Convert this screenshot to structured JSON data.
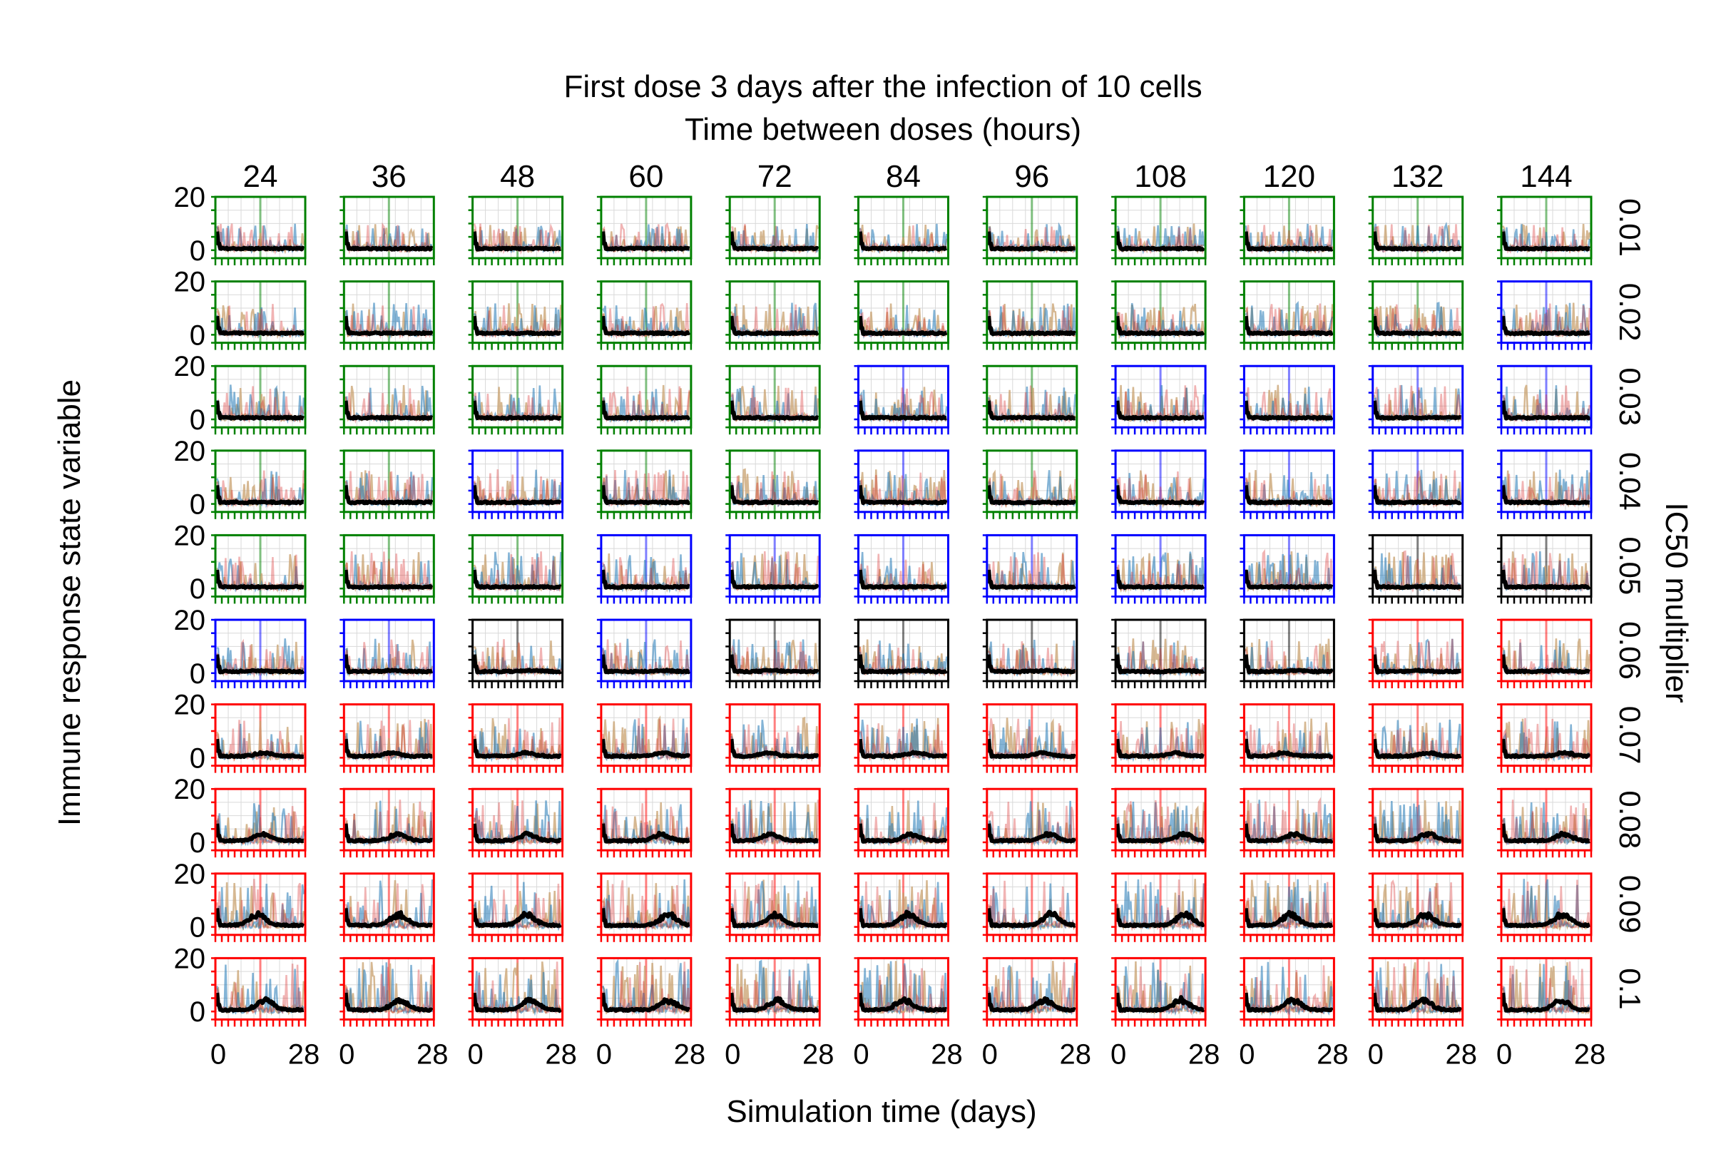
{
  "chart_data": {
    "type": "line",
    "title_line1": "First dose 3 days after the infection of 10 cells",
    "title_line2": "Time between doses (hours)",
    "xlabel": "Simulation time (days)",
    "ylabel": "Immune response state variable",
    "right_label": "IC50 multiplier",
    "columns": [
      "24",
      "36",
      "48",
      "60",
      "72",
      "84",
      "96",
      "108",
      "120",
      "132",
      "144"
    ],
    "rows": [
      "0.01",
      "0.02",
      "0.03",
      "0.04",
      "0.05",
      "0.06",
      "0.07",
      "0.08",
      "0.09",
      "0.1"
    ],
    "xlim": [
      0,
      28
    ],
    "ylim": [
      -3,
      20
    ],
    "x_tick_labels": [
      "0",
      "28"
    ],
    "y_tick_labels": [
      "20",
      "0"
    ],
    "frame_color_codes": [
      [
        "g",
        "g",
        "g",
        "g",
        "g",
        "g",
        "g",
        "g",
        "g",
        "g",
        "g"
      ],
      [
        "g",
        "g",
        "g",
        "g",
        "g",
        "g",
        "g",
        "g",
        "g",
        "g",
        "b"
      ],
      [
        "g",
        "g",
        "g",
        "g",
        "g",
        "b",
        "g",
        "b",
        "b",
        "b",
        "b"
      ],
      [
        "g",
        "g",
        "b",
        "g",
        "g",
        "b",
        "g",
        "b",
        "b",
        "b",
        "b"
      ],
      [
        "g",
        "g",
        "g",
        "b",
        "b",
        "b",
        "b",
        "b",
        "b",
        "k",
        "k"
      ],
      [
        "b",
        "b",
        "k",
        "b",
        "k",
        "k",
        "k",
        "k",
        "k",
        "r",
        "r"
      ],
      [
        "r",
        "r",
        "r",
        "r",
        "r",
        "r",
        "r",
        "r",
        "r",
        "r",
        "r"
      ],
      [
        "r",
        "r",
        "r",
        "r",
        "r",
        "r",
        "r",
        "r",
        "r",
        "r",
        "r"
      ],
      [
        "r",
        "r",
        "r",
        "r",
        "r",
        "r",
        "r",
        "r",
        "r",
        "r",
        "r"
      ],
      [
        "r",
        "r",
        "r",
        "r",
        "r",
        "r",
        "r",
        "r",
        "r",
        "r",
        "r"
      ]
    ],
    "frame_colors": {
      "g": "#008000",
      "b": "#0000ff",
      "k": "#000000",
      "r": "#ff0000"
    },
    "series_colors": {
      "mean": "#000000",
      "trajectory_blue": "#1f77b4",
      "trajectory_tan": "#c8a06e",
      "trajectory_red": "#d62728"
    },
    "grid": true,
    "mean_peak_by_row": [
      0,
      0,
      0,
      0,
      0,
      0.5,
      1.5,
      3,
      5,
      4.5
    ],
    "mean_start_value": 7,
    "spike_max_by_row": [
      10,
      12,
      13,
      13,
      14,
      13,
      15,
      16,
      18,
      19
    ]
  }
}
